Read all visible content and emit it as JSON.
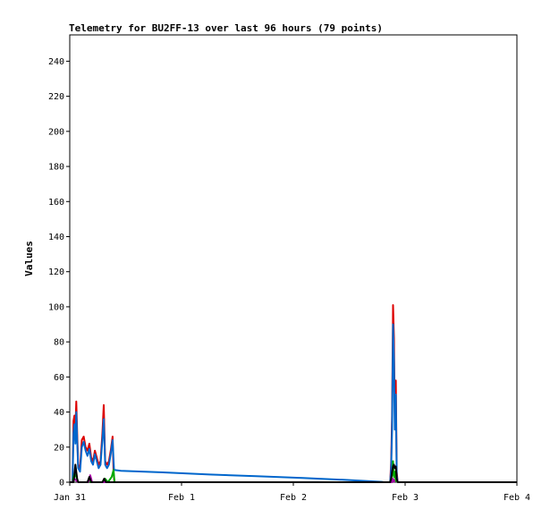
{
  "chart_data": {
    "type": "line",
    "title": "Telemetry for BU2FF-13 over last 96 hours (79 points)",
    "xlabel": "",
    "ylabel": "Values",
    "x_ticks": [
      "Jan 31",
      "Feb 1",
      "Feb 2",
      "Feb 3",
      "Feb 4"
    ],
    "x_unit": "hours since Jan 31 00:00",
    "xlim": [
      0,
      96
    ],
    "ylim": [
      0,
      255
    ],
    "y_ticks": [
      0,
      20,
      40,
      60,
      80,
      100,
      120,
      140,
      160,
      180,
      200,
      220,
      240
    ],
    "grid": false,
    "legend": "none",
    "series": [
      {
        "color": "#dd0000",
        "points": [
          [
            0.6,
            0
          ],
          [
            0.8,
            35
          ],
          [
            1.0,
            38
          ],
          [
            1.2,
            30
          ],
          [
            1.4,
            46
          ],
          [
            1.6,
            28
          ],
          [
            1.8,
            10
          ],
          [
            2.2,
            8
          ],
          [
            2.6,
            24
          ],
          [
            3.0,
            26
          ],
          [
            3.4,
            20
          ],
          [
            3.8,
            18
          ],
          [
            4.2,
            22
          ],
          [
            4.6,
            14
          ],
          [
            5.0,
            12
          ],
          [
            5.4,
            18
          ],
          [
            5.8,
            14
          ],
          [
            6.2,
            10
          ],
          [
            6.6,
            12
          ],
          [
            7.0,
            28
          ],
          [
            7.3,
            44
          ],
          [
            7.6,
            12
          ],
          [
            8.0,
            10
          ],
          [
            8.4,
            12
          ],
          [
            8.8,
            18
          ],
          [
            9.2,
            26
          ],
          [
            9.4,
            5
          ],
          [
            9.6,
            0
          ],
          [
            67.2,
            0
          ],
          [
            68.8,
            0
          ],
          [
            69.0,
            12
          ],
          [
            69.2,
            38
          ],
          [
            69.4,
            101
          ],
          [
            69.6,
            82
          ],
          [
            69.8,
            34
          ],
          [
            70.0,
            58
          ],
          [
            70.2,
            6
          ],
          [
            70.4,
            0
          ]
        ]
      },
      {
        "color": "#0066cc",
        "points": [
          [
            0.6,
            0
          ],
          [
            0.8,
            28
          ],
          [
            1.0,
            33
          ],
          [
            1.2,
            22
          ],
          [
            1.4,
            40
          ],
          [
            1.6,
            24
          ],
          [
            1.8,
            8
          ],
          [
            2.2,
            6
          ],
          [
            2.6,
            20
          ],
          [
            3.0,
            23
          ],
          [
            3.4,
            18
          ],
          [
            3.8,
            15
          ],
          [
            4.2,
            19
          ],
          [
            4.6,
            12
          ],
          [
            5.0,
            10
          ],
          [
            5.4,
            16
          ],
          [
            5.8,
            12
          ],
          [
            6.2,
            8
          ],
          [
            6.6,
            10
          ],
          [
            7.0,
            24
          ],
          [
            7.3,
            36
          ],
          [
            7.6,
            10
          ],
          [
            8.0,
            8
          ],
          [
            8.4,
            10
          ],
          [
            8.8,
            16
          ],
          [
            9.2,
            24
          ],
          [
            9.5,
            7
          ],
          [
            11,
            6.5
          ],
          [
            20,
            5.6
          ],
          [
            30,
            4.4
          ],
          [
            40,
            3.4
          ],
          [
            50,
            2.4
          ],
          [
            60,
            1.2
          ],
          [
            67,
            0.2
          ],
          [
            67.4,
            0
          ],
          [
            68.8,
            0
          ],
          [
            69.0,
            8
          ],
          [
            69.2,
            30
          ],
          [
            69.4,
            90
          ],
          [
            69.6,
            70
          ],
          [
            69.8,
            30
          ],
          [
            70.0,
            50
          ],
          [
            70.2,
            4
          ],
          [
            70.4,
            0
          ]
        ]
      },
      {
        "color": "#00aa00",
        "points": [
          [
            0.6,
            0
          ],
          [
            1.0,
            5
          ],
          [
            1.4,
            3
          ],
          [
            1.8,
            0
          ],
          [
            7.2,
            0
          ],
          [
            7.6,
            2
          ],
          [
            8.2,
            0
          ],
          [
            9.0,
            3
          ],
          [
            9.4,
            7
          ],
          [
            9.6,
            0
          ],
          [
            68.8,
            0
          ],
          [
            69.2,
            4
          ],
          [
            69.4,
            12
          ],
          [
            69.6,
            3
          ],
          [
            69.8,
            6
          ],
          [
            70.0,
            0
          ]
        ]
      },
      {
        "color": "#aa00aa",
        "points": [
          [
            0.6,
            0
          ],
          [
            1.0,
            2
          ],
          [
            1.4,
            1
          ],
          [
            1.8,
            0
          ],
          [
            4.0,
            0
          ],
          [
            4.4,
            4
          ],
          [
            4.8,
            0
          ],
          [
            69.2,
            0
          ],
          [
            69.4,
            2
          ],
          [
            69.8,
            0
          ]
        ]
      },
      {
        "color": "#000000",
        "points": [
          [
            0,
            0
          ],
          [
            0.8,
            0
          ],
          [
            1.0,
            4
          ],
          [
            1.2,
            10
          ],
          [
            1.4,
            6
          ],
          [
            1.6,
            2
          ],
          [
            1.8,
            0
          ],
          [
            3.8,
            0
          ],
          [
            4.2,
            3
          ],
          [
            4.6,
            0
          ],
          [
            7.0,
            0
          ],
          [
            7.4,
            2
          ],
          [
            7.8,
            0
          ],
          [
            68.8,
            0
          ],
          [
            69.0,
            2
          ],
          [
            69.2,
            6
          ],
          [
            69.4,
            9
          ],
          [
            69.6,
            10
          ],
          [
            69.8,
            8
          ],
          [
            70.0,
            9
          ],
          [
            70.2,
            2
          ],
          [
            70.4,
            0
          ],
          [
            96,
            0
          ]
        ]
      }
    ]
  }
}
